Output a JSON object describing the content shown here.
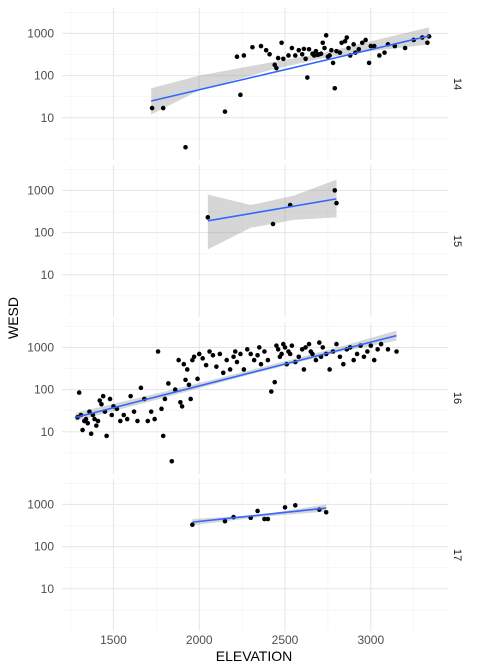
{
  "chart_data": {
    "type": "scatter",
    "title": "",
    "xlabel": "ELEVATION",
    "ylabel": "WESD",
    "x_ticks": [
      1500,
      2000,
      2500,
      3000
    ],
    "y_ticks": [
      10,
      100,
      1000
    ],
    "y_tick_labels": [
      "10",
      "100",
      "1000"
    ],
    "y_scale": "log10",
    "xlim": [
      1200,
      3450
    ],
    "ylim": [
      1,
      4000
    ],
    "grid": true,
    "smoother": "linear fit with confidence band",
    "facets": [
      {
        "label": "14",
        "points": [
          [
            1725,
            17
          ],
          [
            1790,
            17
          ],
          [
            1920,
            2
          ],
          [
            2150,
            14
          ],
          [
            2220,
            280
          ],
          [
            2240,
            35
          ],
          [
            2260,
            300
          ],
          [
            2310,
            470
          ],
          [
            2360,
            500
          ],
          [
            2390,
            400
          ],
          [
            2410,
            320
          ],
          [
            2440,
            180
          ],
          [
            2450,
            150
          ],
          [
            2460,
            260
          ],
          [
            2480,
            600
          ],
          [
            2490,
            250
          ],
          [
            2520,
            300
          ],
          [
            2540,
            450
          ],
          [
            2560,
            300
          ],
          [
            2580,
            400
          ],
          [
            2600,
            320
          ],
          [
            2610,
            430
          ],
          [
            2620,
            250
          ],
          [
            2630,
            90
          ],
          [
            2640,
            420
          ],
          [
            2660,
            330
          ],
          [
            2670,
            300
          ],
          [
            2680,
            380
          ],
          [
            2690,
            310
          ],
          [
            2700,
            320
          ],
          [
            2710,
            330
          ],
          [
            2720,
            600
          ],
          [
            2730,
            450
          ],
          [
            2740,
            900
          ],
          [
            2750,
            280
          ],
          [
            2760,
            300
          ],
          [
            2770,
            400
          ],
          [
            2780,
            200
          ],
          [
            2790,
            50
          ],
          [
            2800,
            380
          ],
          [
            2820,
            350
          ],
          [
            2830,
            600
          ],
          [
            2850,
            650
          ],
          [
            2860,
            800
          ],
          [
            2870,
            450
          ],
          [
            2880,
            300
          ],
          [
            2900,
            550
          ],
          [
            2910,
            350
          ],
          [
            2930,
            420
          ],
          [
            2950,
            600
          ],
          [
            2970,
            700
          ],
          [
            2990,
            200
          ],
          [
            3000,
            500
          ],
          [
            3020,
            500
          ],
          [
            3050,
            300
          ],
          [
            3080,
            350
          ],
          [
            3100,
            550
          ],
          [
            3140,
            500
          ],
          [
            3200,
            450
          ],
          [
            3250,
            700
          ],
          [
            3300,
            800
          ],
          [
            3330,
            600
          ],
          [
            3340,
            850
          ]
        ],
        "fit": [
          [
            1720,
            25
          ],
          [
            3340,
            870
          ]
        ],
        "band": [
          [
            1720,
            12,
            50
          ],
          [
            2000,
            45,
            100
          ],
          [
            2400,
            130,
            200
          ],
          [
            2700,
            250,
            330
          ],
          [
            3000,
            380,
            650
          ],
          [
            3340,
            550,
            1400
          ]
        ]
      },
      {
        "label": "15",
        "points": [
          [
            2050,
            230
          ],
          [
            2430,
            160
          ],
          [
            2530,
            450
          ],
          [
            2790,
            1000
          ],
          [
            2800,
            500
          ]
        ],
        "fit": [
          [
            2050,
            190
          ],
          [
            2800,
            630
          ]
        ],
        "band": [
          [
            2050,
            40,
            800
          ],
          [
            2300,
            130,
            450
          ],
          [
            2550,
            200,
            750
          ],
          [
            2800,
            230,
            1800
          ]
        ]
      },
      {
        "label": "16",
        "points": [
          [
            1290,
            22
          ],
          [
            1300,
            85
          ],
          [
            1310,
            25
          ],
          [
            1320,
            11
          ],
          [
            1330,
            18
          ],
          [
            1340,
            20
          ],
          [
            1350,
            16
          ],
          [
            1360,
            30
          ],
          [
            1370,
            9
          ],
          [
            1380,
            25
          ],
          [
            1390,
            20
          ],
          [
            1400,
            14
          ],
          [
            1410,
            18
          ],
          [
            1420,
            55
          ],
          [
            1430,
            45
          ],
          [
            1440,
            70
          ],
          [
            1450,
            30
          ],
          [
            1460,
            8
          ],
          [
            1480,
            60
          ],
          [
            1490,
            25
          ],
          [
            1500,
            40
          ],
          [
            1520,
            35
          ],
          [
            1540,
            18
          ],
          [
            1560,
            25
          ],
          [
            1580,
            20
          ],
          [
            1600,
            70
          ],
          [
            1620,
            30
          ],
          [
            1640,
            18
          ],
          [
            1660,
            110
          ],
          [
            1680,
            60
          ],
          [
            1700,
            18
          ],
          [
            1720,
            30
          ],
          [
            1740,
            20
          ],
          [
            1760,
            800
          ],
          [
            1780,
            35
          ],
          [
            1790,
            8
          ],
          [
            1800,
            60
          ],
          [
            1820,
            140
          ],
          [
            1840,
            2
          ],
          [
            1860,
            100
          ],
          [
            1880,
            500
          ],
          [
            1890,
            50
          ],
          [
            1900,
            40
          ],
          [
            1910,
            400
          ],
          [
            1920,
            170
          ],
          [
            1930,
            300
          ],
          [
            1940,
            130
          ],
          [
            1950,
            60
          ],
          [
            1960,
            500
          ],
          [
            1970,
            600
          ],
          [
            1990,
            180
          ],
          [
            2000,
            700
          ],
          [
            2020,
            550
          ],
          [
            2040,
            380
          ],
          [
            2060,
            800
          ],
          [
            2080,
            650
          ],
          [
            2100,
            350
          ],
          [
            2120,
            700
          ],
          [
            2140,
            250
          ],
          [
            2160,
            500
          ],
          [
            2180,
            300
          ],
          [
            2200,
            600
          ],
          [
            2210,
            800
          ],
          [
            2220,
            450
          ],
          [
            2240,
            700
          ],
          [
            2260,
            300
          ],
          [
            2280,
            900
          ],
          [
            2300,
            700
          ],
          [
            2320,
            500
          ],
          [
            2340,
            650
          ],
          [
            2350,
            1000
          ],
          [
            2360,
            400
          ],
          [
            2380,
            800
          ],
          [
            2400,
            500
          ],
          [
            2420,
            90
          ],
          [
            2440,
            150
          ],
          [
            2450,
            1100
          ],
          [
            2460,
            900
          ],
          [
            2470,
            600
          ],
          [
            2480,
            700
          ],
          [
            2490,
            1200
          ],
          [
            2500,
            1000
          ],
          [
            2510,
            400
          ],
          [
            2520,
            800
          ],
          [
            2530,
            700
          ],
          [
            2540,
            1100
          ],
          [
            2560,
            450
          ],
          [
            2580,
            600
          ],
          [
            2600,
            900
          ],
          [
            2610,
            300
          ],
          [
            2620,
            1000
          ],
          [
            2640,
            1200
          ],
          [
            2650,
            800
          ],
          [
            2660,
            700
          ],
          [
            2680,
            500
          ],
          [
            2700,
            1300
          ],
          [
            2710,
            600
          ],
          [
            2720,
            1000
          ],
          [
            2740,
            700
          ],
          [
            2760,
            300
          ],
          [
            2780,
            800
          ],
          [
            2800,
            1200
          ],
          [
            2820,
            600
          ],
          [
            2840,
            400
          ],
          [
            2860,
            900
          ],
          [
            2880,
            1000
          ],
          [
            2900,
            500
          ],
          [
            2920,
            700
          ],
          [
            2940,
            1100
          ],
          [
            2960,
            600
          ],
          [
            2980,
            800
          ],
          [
            3000,
            1100
          ],
          [
            3020,
            500
          ],
          [
            3040,
            900
          ],
          [
            3060,
            1200
          ],
          [
            3100,
            900
          ],
          [
            3150,
            800
          ]
        ],
        "fit": [
          [
            1280,
            22
          ],
          [
            3150,
            1900
          ]
        ],
        "band": [
          [
            1280,
            18,
            28
          ],
          [
            1800,
            65,
            90
          ],
          [
            2300,
            230,
            290
          ],
          [
            2800,
            750,
            980
          ],
          [
            3150,
            1450,
            2500
          ]
        ]
      },
      {
        "label": "17",
        "points": [
          [
            1960,
            330
          ],
          [
            2150,
            400
          ],
          [
            2200,
            500
          ],
          [
            2300,
            480
          ],
          [
            2340,
            700
          ],
          [
            2380,
            450
          ],
          [
            2400,
            450
          ],
          [
            2500,
            850
          ],
          [
            2560,
            950
          ],
          [
            2700,
            750
          ],
          [
            2740,
            650
          ]
        ],
        "fit": [
          [
            1960,
            380
          ],
          [
            2740,
            820
          ]
        ],
        "band": [
          [
            1960,
            320,
            450
          ],
          [
            2350,
            500,
            560
          ],
          [
            2740,
            680,
            1000
          ]
        ]
      }
    ]
  }
}
